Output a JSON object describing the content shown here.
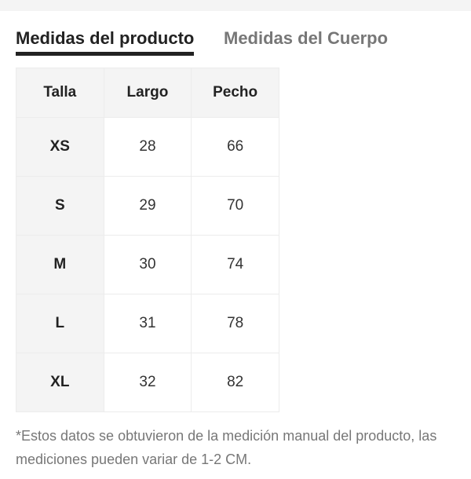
{
  "tabs": [
    {
      "label": "Medidas del producto",
      "active": true
    },
    {
      "label": "Medidas del Cuerpo",
      "active": false
    }
  ],
  "table": {
    "headers": [
      "Talla",
      "Largo",
      "Pecho"
    ],
    "rows": [
      [
        "XS",
        "28",
        "66"
      ],
      [
        "S",
        "29",
        "70"
      ],
      [
        "M",
        "30",
        "74"
      ],
      [
        "L",
        "31",
        "78"
      ],
      [
        "XL",
        "32",
        "82"
      ]
    ]
  },
  "note": "*Estos datos se obtuvieron de la medición manual del producto, las mediciones pueden variar de 1-2 CM."
}
